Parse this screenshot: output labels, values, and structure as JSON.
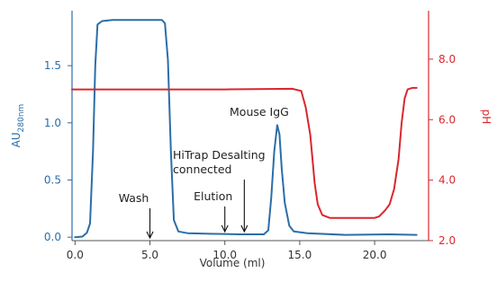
{
  "chart_data": {
    "type": "line",
    "xlabel": "Volume (ml)",
    "x_ticks": [
      "0.0",
      "5.0",
      "10.0",
      "15.0",
      "20.0"
    ],
    "xlim": [
      -0.2,
      23.6
    ],
    "y_left": {
      "label": "AU",
      "label_sub": "280nm",
      "ticks": [
        "0.0",
        "0.5",
        "1.0",
        "1.5"
      ],
      "lim": [
        -0.03,
        1.98
      ],
      "color": "#2b6ea8"
    },
    "y_right": {
      "label": "pH",
      "ticks": [
        "2.0",
        "4.0",
        "6.0",
        "8.0"
      ],
      "lim": [
        2.0,
        9.6
      ],
      "color": "#d9272e"
    },
    "series": [
      {
        "axis": "left",
        "color": "#2b6ea8",
        "points": [
          [
            0.0,
            0.0
          ],
          [
            0.5,
            0.005
          ],
          [
            0.8,
            0.04
          ],
          [
            1.0,
            0.12
          ],
          [
            1.2,
            0.75
          ],
          [
            1.35,
            1.5
          ],
          [
            1.5,
            1.86
          ],
          [
            1.8,
            1.89
          ],
          [
            2.5,
            1.9
          ],
          [
            4.0,
            1.9
          ],
          [
            5.2,
            1.9
          ],
          [
            5.8,
            1.9
          ],
          [
            6.0,
            1.87
          ],
          [
            6.2,
            1.55
          ],
          [
            6.4,
            0.75
          ],
          [
            6.6,
            0.15
          ],
          [
            6.9,
            0.05
          ],
          [
            7.5,
            0.035
          ],
          [
            9.0,
            0.03
          ],
          [
            11.0,
            0.025
          ],
          [
            12.6,
            0.025
          ],
          [
            12.9,
            0.06
          ],
          [
            13.1,
            0.35
          ],
          [
            13.3,
            0.75
          ],
          [
            13.5,
            0.98
          ],
          [
            13.65,
            0.9
          ],
          [
            13.8,
            0.6
          ],
          [
            14.0,
            0.3
          ],
          [
            14.3,
            0.1
          ],
          [
            14.6,
            0.05
          ],
          [
            15.5,
            0.035
          ],
          [
            18.0,
            0.02
          ],
          [
            21.0,
            0.025
          ],
          [
            22.8,
            0.02
          ]
        ]
      },
      {
        "axis": "right",
        "color": "#d9272e",
        "points": [
          [
            -0.2,
            7.0
          ],
          [
            2.0,
            7.0
          ],
          [
            10.0,
            7.0
          ],
          [
            14.5,
            7.02
          ],
          [
            15.1,
            6.95
          ],
          [
            15.4,
            6.4
          ],
          [
            15.7,
            5.5
          ],
          [
            16.0,
            3.9
          ],
          [
            16.2,
            3.2
          ],
          [
            16.5,
            2.85
          ],
          [
            17.0,
            2.75
          ],
          [
            18.0,
            2.75
          ],
          [
            19.0,
            2.75
          ],
          [
            20.0,
            2.75
          ],
          [
            20.3,
            2.8
          ],
          [
            20.7,
            3.0
          ],
          [
            21.0,
            3.2
          ],
          [
            21.3,
            3.7
          ],
          [
            21.6,
            4.7
          ],
          [
            21.8,
            5.9
          ],
          [
            22.0,
            6.7
          ],
          [
            22.2,
            7.0
          ],
          [
            22.5,
            7.05
          ],
          [
            22.8,
            7.05
          ]
        ]
      }
    ],
    "annotations": [
      {
        "lines": [
          "Wash"
        ],
        "x": 5.0
      },
      {
        "lines": [
          "Elution"
        ],
        "x": 10.0
      },
      {
        "lines": [
          "HiTrap Desalting",
          "connected"
        ],
        "x": 11.3
      },
      {
        "lines": [
          "Mouse IgG"
        ],
        "x": 13.5
      }
    ]
  }
}
